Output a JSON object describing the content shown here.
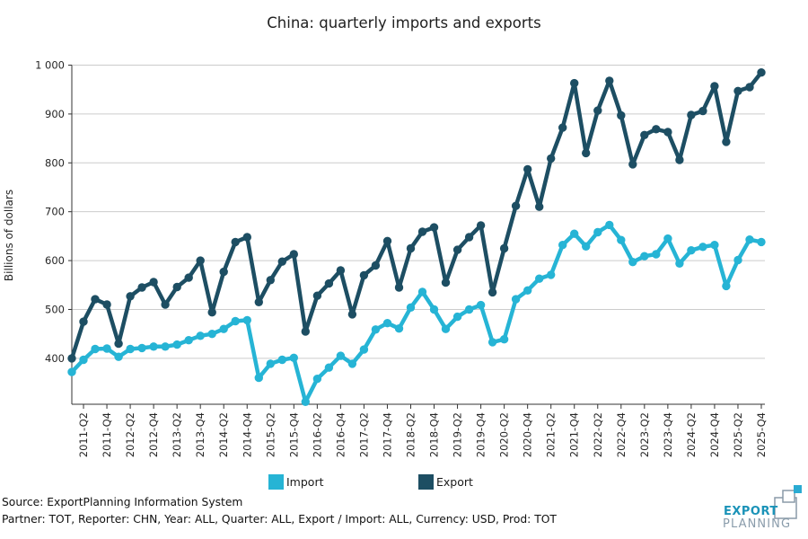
{
  "title": "China: quarterly imports and exports",
  "y_axis": {
    "label": "Billions of dollars",
    "ticks": [
      {
        "v": 1000,
        "label": "1 000"
      },
      {
        "v": 900,
        "label": "900"
      },
      {
        "v": 800,
        "label": "800"
      },
      {
        "v": 700,
        "label": "700"
      },
      {
        "v": 600,
        "label": "600"
      },
      {
        "v": 500,
        "label": "500"
      },
      {
        "v": 400,
        "label": "400"
      }
    ]
  },
  "legend": [
    {
      "label": "Import",
      "color": "#26b4d5"
    },
    {
      "label": "Export",
      "color": "#1d4e63"
    }
  ],
  "footer": {
    "source": "Source: ExportPlanning Information System",
    "params": "Partner: TOT, Reporter: CHN, Year: ALL, Quarter: ALL, Export / Import: ALL, Currency: USD, Prod: TOT"
  },
  "logo": {
    "line1": "EXPORT",
    "line2": "PLANNING"
  },
  "chart_data": {
    "type": "line",
    "title": "China: quarterly imports and exports",
    "ylabel": "Billions of dollars",
    "ylim": [
      306,
      1000
    ],
    "grid": "horizontal",
    "legend_position": "bottom",
    "x_ticks": "every second quarter starting 2011-Q2, labels rotated 90",
    "x": [
      "2011-Q1",
      "2011-Q2",
      "2011-Q3",
      "2011-Q4",
      "2012-Q1",
      "2012-Q2",
      "2012-Q3",
      "2012-Q4",
      "2013-Q1",
      "2013-Q2",
      "2013-Q3",
      "2013-Q4",
      "2014-Q1",
      "2014-Q2",
      "2014-Q3",
      "2014-Q4",
      "2015-Q1",
      "2015-Q2",
      "2015-Q3",
      "2015-Q4",
      "2016-Q1",
      "2016-Q2",
      "2016-Q3",
      "2016-Q4",
      "2017-Q1",
      "2017-Q2",
      "2017-Q3",
      "2017-Q4",
      "2018-Q1",
      "2018-Q2",
      "2018-Q3",
      "2018-Q4",
      "2019-Q1",
      "2019-Q2",
      "2019-Q3",
      "2019-Q4",
      "2020-Q1",
      "2020-Q2",
      "2020-Q3",
      "2020-Q4",
      "2021-Q1",
      "2021-Q2",
      "2021-Q3",
      "2021-Q4",
      "2022-Q1",
      "2022-Q2",
      "2022-Q3",
      "2022-Q4",
      "2023-Q1",
      "2023-Q2",
      "2023-Q3",
      "2023-Q4",
      "2024-Q1",
      "2024-Q2",
      "2024-Q3",
      "2024-Q4",
      "2025-Q1",
      "2025-Q2",
      "2025-Q3",
      "2025-Q4"
    ],
    "series": [
      {
        "name": "Import",
        "color": "#26b4d5",
        "values": [
          372,
          397,
          419,
          420,
          403,
          419,
          421,
          424,
          424,
          428,
          437,
          446,
          450,
          460,
          476,
          478,
          360,
          389,
          397,
          401,
          311,
          358,
          381,
          405,
          389,
          418,
          459,
          472,
          461,
          504,
          536,
          500,
          460,
          485,
          500,
          509,
          433,
          439,
          521,
          539,
          563,
          571,
          632,
          655,
          629,
          658,
          673,
          642,
          597,
          609,
          613,
          645,
          594,
          621,
          628,
          632,
          548,
          601,
          643,
          638
        ]
      },
      {
        "name": "Export",
        "color": "#1d4e63",
        "values": [
          400,
          475,
          521,
          510,
          430,
          527,
          545,
          556,
          510,
          546,
          565,
          600,
          494,
          577,
          638,
          648,
          515,
          560,
          598,
          613,
          455,
          528,
          553,
          580,
          490,
          570,
          590,
          640,
          545,
          625,
          659,
          668,
          555,
          622,
          648,
          672,
          535,
          625,
          712,
          787,
          710,
          809,
          872,
          963,
          820,
          907,
          968,
          897,
          797,
          857,
          869,
          863,
          806,
          898,
          906,
          957,
          843,
          947,
          955,
          985
        ]
      }
    ]
  }
}
